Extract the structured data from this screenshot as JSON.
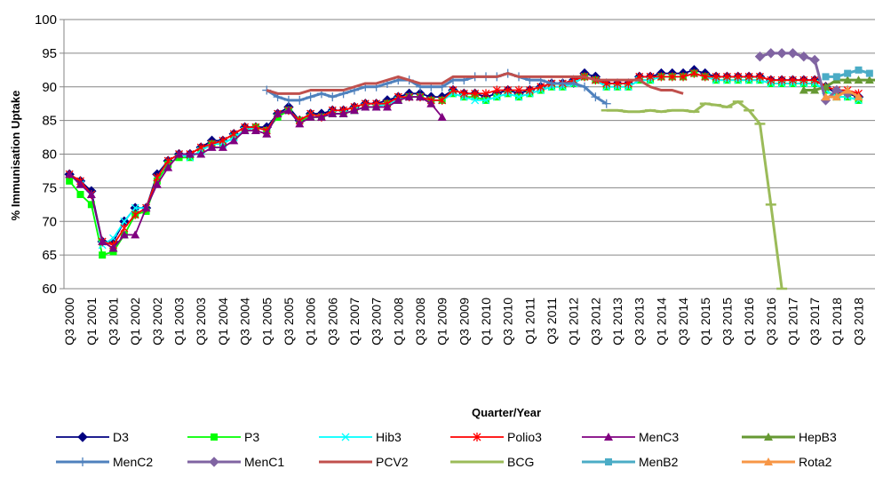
{
  "chart_data": {
    "type": "line",
    "xlabel": "Quarter/Year",
    "ylabel": "% Immunisation Uptake",
    "ylim": [
      60,
      100
    ],
    "yticks": [
      60,
      65,
      70,
      75,
      80,
      85,
      90,
      95,
      100
    ],
    "x_tick_labels": [
      "Q3 2000",
      "Q1 2001",
      "Q3 2001",
      "Q1 2002",
      "Q3 2002",
      "Q1 2003",
      "Q3 2003",
      "Q1 2004",
      "Q3 2004",
      "Q1 2005",
      "Q3 2005",
      "Q1 2006",
      "Q3 2006",
      "Q1 2007",
      "Q3 2007",
      "Q1 2008",
      "Q3 2008",
      "Q1 2009",
      "Q3 2009",
      "Q1 2010",
      "Q3 2010",
      "Q1 2011",
      "Q3 2011",
      "Q1 2012",
      "Q3 2012",
      "Q1 2013",
      "Q3 2013",
      "Q1 2014",
      "Q3 2014",
      "Q1 2015",
      "Q3 2015",
      "Q1 2016",
      "Q3 2016",
      "Q1 2017",
      "Q3 2017",
      "Q1 2018",
      "Q3 2018"
    ],
    "x_start": "Q3 2000",
    "grid": "horizontal",
    "legend_position": "bottom",
    "series": [
      {
        "name": "D3",
        "color": "#000080",
        "marker": "diamond",
        "values": [
          77,
          76,
          74.5,
          67,
          67,
          70,
          72,
          72,
          77,
          79,
          80,
          80,
          81,
          82,
          82,
          83,
          84,
          84,
          84,
          86,
          87,
          85,
          86,
          86,
          86.5,
          86.5,
          87,
          87.5,
          87.5,
          88,
          88.5,
          89,
          89,
          88.5,
          88.5,
          89.5,
          89,
          89,
          88.5,
          89,
          89.5,
          89,
          89.5,
          90,
          90.5,
          90.5,
          91,
          92,
          91.5,
          90.5,
          90.5,
          90.5,
          91.5,
          91.5,
          92,
          92,
          92,
          92.5,
          92,
          91.5,
          91.5,
          91.5,
          91.5,
          91.5,
          91,
          91,
          91,
          91,
          91,
          90,
          89,
          89,
          88.5
        ]
      },
      {
        "name": "P3",
        "color": "#00ff00",
        "marker": "square",
        "values": [
          76,
          74,
          72.5,
          65,
          65.5,
          68,
          71,
          71.5,
          76,
          78.5,
          79.5,
          79.5,
          80.5,
          81.5,
          81.5,
          82.5,
          83.5,
          84,
          83.5,
          85.5,
          86.5,
          85,
          85.5,
          85.5,
          86,
          86,
          86.5,
          87,
          87,
          87.5,
          88,
          88.5,
          88.5,
          88,
          88,
          89,
          88.5,
          88.5,
          88,
          88.5,
          89,
          88.5,
          89,
          89.5,
          90,
          90,
          90.5,
          91.5,
          91,
          90,
          90,
          90,
          91,
          91,
          91.5,
          91.5,
          91.5,
          92,
          91.5,
          91,
          91,
          91,
          91,
          91,
          90.5,
          90.5,
          90.5,
          90.5,
          90.5,
          89.5,
          88.5,
          88.5,
          88
        ]
      },
      {
        "name": "Hib3",
        "color": "#00ffff",
        "marker": "x",
        "values": [
          77,
          75.5,
          74,
          66.5,
          67.5,
          70,
          72,
          72,
          76.5,
          79,
          80,
          79.5,
          80.5,
          81.5,
          81.5,
          82.5,
          83.5,
          84,
          83.5,
          86,
          86.5,
          85,
          86,
          85.5,
          86,
          86,
          86.5,
          87,
          87,
          87.5,
          88,
          88.5,
          88.5,
          88,
          88,
          89,
          88.5,
          88,
          88,
          88.5,
          89,
          88.5,
          89,
          89.5,
          90,
          90,
          90.5,
          91.5,
          91,
          90,
          90,
          90,
          91,
          91,
          91.5,
          91.5,
          91.5,
          92,
          91.5,
          91,
          91,
          91,
          91,
          91,
          90.5,
          90.5,
          90.5,
          90.5,
          90.5,
          89.5,
          88.5,
          88.5,
          88
        ]
      },
      {
        "name": "Polio3",
        "color": "#ff0000",
        "marker": "asterisk",
        "values": [
          77,
          76,
          74,
          67,
          66.5,
          69,
          71,
          72,
          76.5,
          79,
          80,
          80,
          81,
          81.5,
          82,
          83,
          84,
          84,
          83.5,
          86,
          86.5,
          85,
          86,
          85.5,
          86.5,
          86.5,
          87,
          87.5,
          87.5,
          87.5,
          88.5,
          88.5,
          88.5,
          88,
          88,
          89.5,
          89,
          89,
          89,
          89.5,
          89.5,
          89.5,
          89.5,
          90,
          90.5,
          90.5,
          91,
          91.5,
          91,
          90.5,
          90.5,
          90.5,
          91.5,
          91.5,
          91.5,
          91.5,
          91.5,
          92,
          91.5,
          91.5,
          91.5,
          91.5,
          91.5,
          91.5,
          91,
          91,
          91,
          91,
          91,
          90,
          89.5,
          89.5,
          89
        ]
      },
      {
        "name": "MenC3",
        "color": "#800080",
        "marker": "triangle",
        "values": [
          77,
          75.5,
          74,
          67,
          66,
          68,
          68,
          72,
          75.5,
          78,
          80,
          80,
          80,
          81,
          81,
          82,
          83.5,
          83.5,
          83,
          86,
          86.5,
          84.5,
          85.5,
          85.5,
          86,
          86,
          86.5,
          87,
          87,
          87,
          88,
          88.5,
          88.5,
          87.5,
          85.5
        ]
      },
      {
        "name": "HepB3",
        "color": "#669933",
        "marker": "triangle",
        "offset": 67,
        "values": [
          89.5,
          89.5,
          90,
          91,
          91,
          91,
          91,
          91,
          90,
          89,
          88.5,
          89
        ]
      },
      {
        "name": "MenC2",
        "color": "#4f81bd",
        "marker": "plus",
        "offset": 18,
        "values": [
          89.5,
          88.5,
          88,
          88,
          88.5,
          89,
          88.5,
          89,
          89.5,
          90,
          90,
          90.5,
          91,
          91,
          90,
          90,
          90,
          91,
          91,
          91.5,
          91.5,
          91.5,
          92,
          91.5,
          91,
          91,
          90.5,
          90.5,
          90.5,
          90,
          88.5,
          87.5
        ]
      },
      {
        "name": "MenC1",
        "color": "#8064a2",
        "marker": "diamond",
        "offset": 63,
        "values": [
          94.5,
          95,
          95,
          95,
          94.5,
          94,
          88,
          89.5,
          89
        ]
      },
      {
        "name": "PCV2",
        "color": "#c0504d",
        "marker": "none",
        "offset": 18,
        "values": [
          89.5,
          89,
          89,
          89,
          89.5,
          89.5,
          89.5,
          89.5,
          90,
          90.5,
          90.5,
          91,
          91.5,
          91,
          90.5,
          90.5,
          90.5,
          91.5,
          91.5,
          91.5,
          91.5,
          91.5,
          92,
          91.5,
          91.5,
          91.5,
          91.5,
          91.5,
          91.5,
          91.5,
          91,
          91,
          91,
          91,
          91,
          90,
          89.5,
          89.5,
          89
        ]
      },
      {
        "name": "BCG",
        "color": "#9bbb59",
        "marker": "dash",
        "offset": 49,
        "values": [
          86.5,
          86.5,
          86.3,
          86.3,
          86.5,
          86.3,
          86.5,
          86.5,
          86.3,
          87.5,
          87.3,
          87,
          87.8,
          86.5,
          84.5,
          72.5,
          60
        ]
      },
      {
        "name": "MenB2",
        "color": "#4bacc6",
        "marker": "square",
        "offset": 69,
        "values": [
          91.5,
          91.5,
          92,
          92.5,
          92
        ]
      },
      {
        "name": "Rota2",
        "color": "#f79646",
        "marker": "triangle",
        "offset": 69,
        "values": [
          88.5,
          88.5,
          89.5,
          88.5
        ]
      }
    ]
  }
}
